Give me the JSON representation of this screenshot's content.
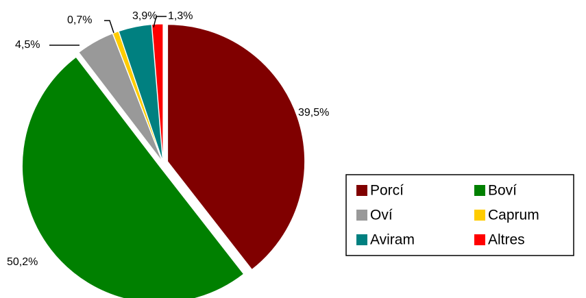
{
  "chart_data": {
    "type": "pie",
    "categories": [
      "Porcí",
      "Boví",
      "Oví",
      "Caprum",
      "Aviram",
      "Altres"
    ],
    "values": [
      39.5,
      50.2,
      4.5,
      0.7,
      3.9,
      1.3
    ],
    "value_labels": [
      "39,5%",
      "50,2%",
      "4,5%",
      "0,7%",
      "3,9%",
      "1,3%"
    ],
    "colors": [
      "#800000",
      "#008000",
      "#999999",
      "#ffcc00",
      "#008080",
      "#ff0000"
    ],
    "legend": "right"
  }
}
